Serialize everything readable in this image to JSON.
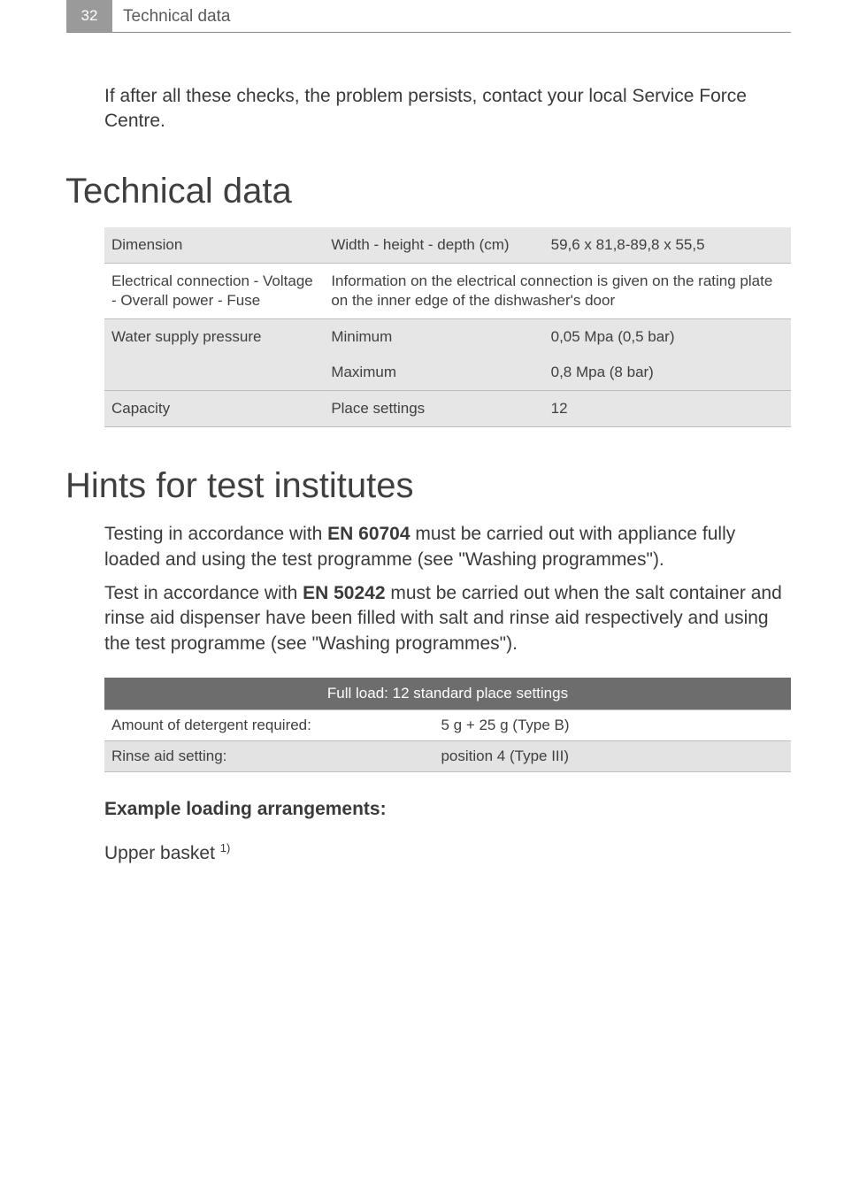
{
  "header": {
    "page_number": "32",
    "title": "Technical data"
  },
  "intro": "If after all these checks, the problem persists, contact your local Service Force Centre.",
  "section_techdata": {
    "heading": "Technical data",
    "table": {
      "row_colors": {
        "odd": "#e6e6e6",
        "even": "#ffffff"
      },
      "border_color": "#bdbdbd",
      "font_size": 17,
      "rows": [
        {
          "c1": "Dimension",
          "c2": "Width - height - depth (cm)",
          "c3": "59,6 x 81,8-89,8 x 55,5",
          "shade": true
        },
        {
          "c1": "Electrical connection - Voltage - Overall power - Fuse",
          "c2_span": "Information on the electrical connection is given on the rating plate on the inner edge of the dishwasher's door",
          "shade": false
        },
        {
          "c1": "Water supply pressure",
          "c2a": "Minimum",
          "c3a": "0,05 Mpa (0,5 bar)",
          "c2b": "Maximum",
          "c3b": "0,8 Mpa (8 bar)",
          "shade": true
        },
        {
          "c1": "Capacity",
          "c2": "Place settings",
          "c3": "12",
          "shade": true
        }
      ]
    }
  },
  "section_hints": {
    "heading": "Hints for test institutes",
    "p1_pre": "Testing in accordance with ",
    "p1_bold": "EN 60704",
    "p1_post": "  must be carried out with appliance fully loaded and using the test programme (see \"Washing programmes\").",
    "p2_pre": "Test in accordance with ",
    "p2_bold": "EN 50242",
    "p2_post": " must be carried out when the salt container and rinse aid dispenser have been filled with salt and rinse aid respectively and using the test programme (see \"Washing programmes\").",
    "fullload_table": {
      "header_bg": "#6d6d6d",
      "header_color": "#ffffff",
      "header": "Full load: 12 standard place settings",
      "rows": [
        {
          "c1": "Amount of detergent required:",
          "c2": "5 g + 25 g (Type B)",
          "shade": false
        },
        {
          "c1": "Rinse aid setting:",
          "c2": "position 4 (Type III)",
          "shade": true
        }
      ]
    },
    "subhead": "Example loading arrangements:",
    "upper_basket": "Upper basket ",
    "upper_basket_sup": "1)"
  },
  "colors": {
    "page_num_bg": "#9a9a9a",
    "page_num_fg": "#ffffff",
    "heading_color": "#3f3f3f",
    "body_text": "#3a3a3a"
  }
}
